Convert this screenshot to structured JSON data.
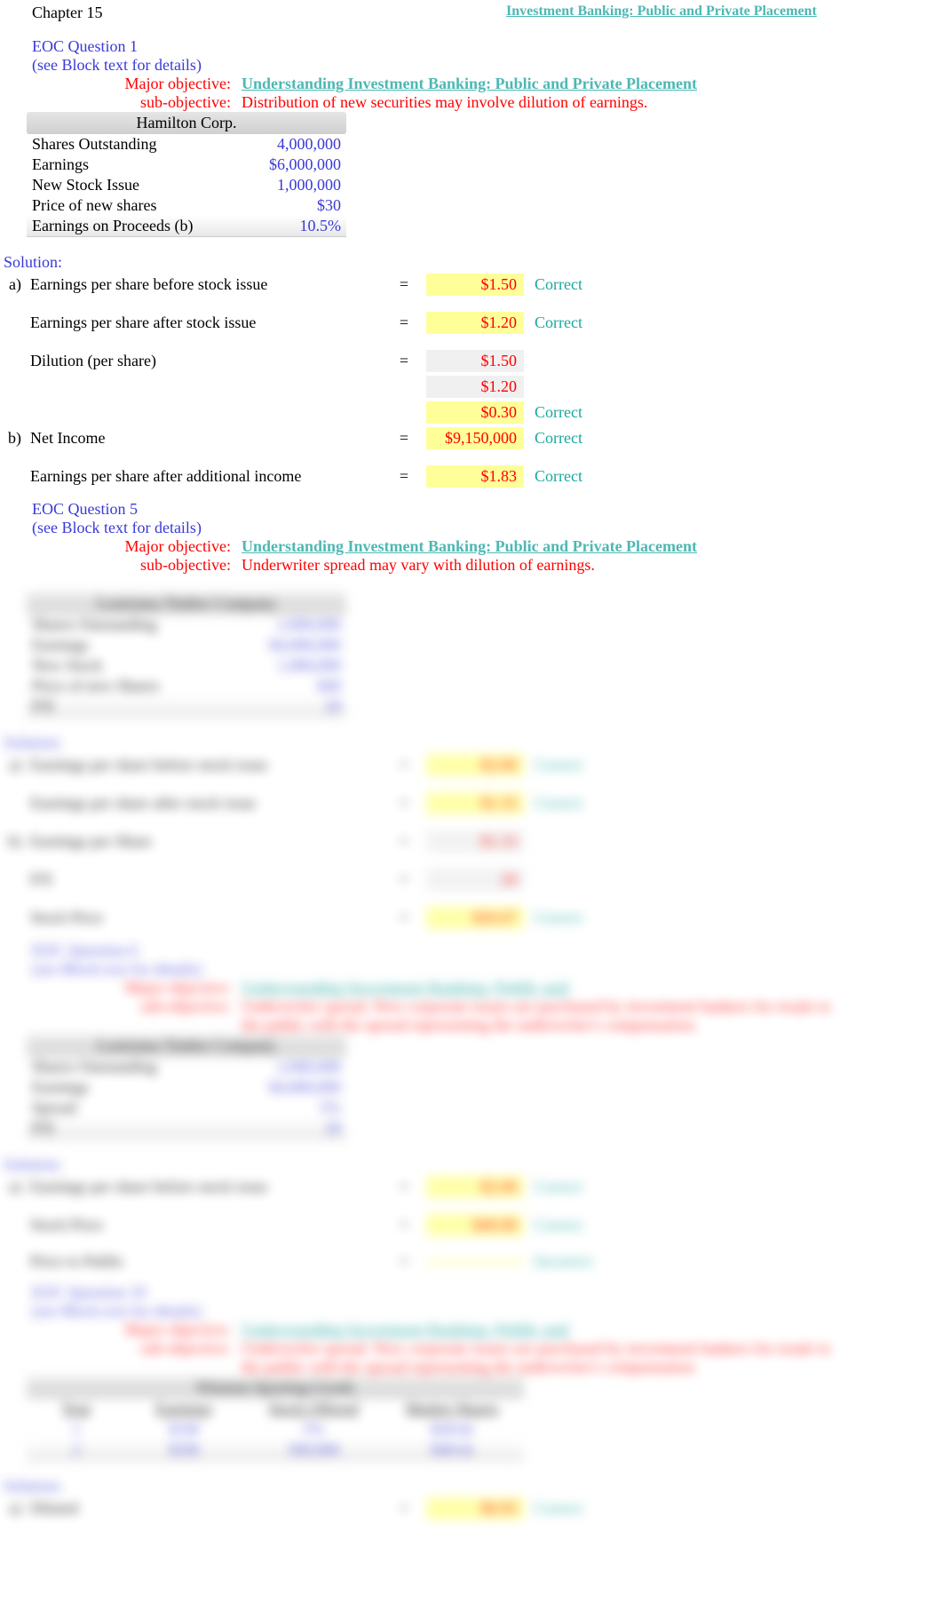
{
  "header": {
    "chapter": "Chapter 15",
    "subtitle_right": "Investment Banking: Public and Private Placement"
  },
  "q1": {
    "title": "EOC Question 1",
    "sub": "(see Block text for details)",
    "major_label": "Major objective:",
    "major_value": "Understanding Investment Banking: Public and Private Placement",
    "sub_label": "sub-objective:",
    "sub_value": "Distribution of new securities may involve dilution of earnings.",
    "table_header": "Hamilton Corp.",
    "rows": [
      {
        "label": "Shares Outstanding",
        "value": "4,000,000"
      },
      {
        "label": "Earnings",
        "value": "$6,000,000"
      },
      {
        "label": "New Stock Issue",
        "value": "1,000,000"
      },
      {
        "label": "Price of new shares",
        "value": "$30"
      },
      {
        "label": "Earnings on Proceeds (b)",
        "value": "10.5%"
      }
    ],
    "solution_label": "Solution:",
    "solutions": [
      {
        "part": "a)",
        "desc": "Earnings per share before stock issue",
        "eq": "=",
        "val": "$1.50",
        "hl": "yellow",
        "status": "Correct"
      },
      {
        "part": "",
        "desc": "Earnings per share after stock issue",
        "eq": "=",
        "val": "$1.20",
        "hl": "yellow",
        "status": "Correct"
      },
      {
        "part": "",
        "desc": "Dilution (per share)",
        "eq": "=",
        "val": "$1.50",
        "hl": "gray",
        "status": ""
      },
      {
        "part": "",
        "desc": "",
        "eq": "",
        "val": "$1.20",
        "hl": "gray",
        "status": ""
      },
      {
        "part": "",
        "desc": "",
        "eq": "",
        "val": "$0.30",
        "hl": "yellow",
        "status": "Correct"
      },
      {
        "part": "b)",
        "desc": "Net Income",
        "eq": "=",
        "val": "$9,150,000",
        "hl": "yellow",
        "status": "Correct"
      },
      {
        "part": "",
        "desc": "Earnings per share after additional income",
        "eq": "=",
        "val": "$1.83",
        "hl": "yellow",
        "status": "Correct"
      }
    ]
  },
  "q5": {
    "title": "EOC Question 5",
    "sub": "(see Block text for details)",
    "major_label": "Major objective:",
    "major_value": "Understanding Investment Banking: Public and Private Placement",
    "sub_label": "sub-objective:",
    "sub_value": "Underwriter spread may vary with dilution of earnings.",
    "table_header": "Louisiana Timber Company",
    "rows": [
      {
        "label": "Shares Outstanding",
        "value": "2,000,000"
      },
      {
        "label": "Earnings",
        "value": "$4,000,000"
      },
      {
        "label": "New Stock",
        "value": "1,000,000"
      },
      {
        "label": "Price of new Shares",
        "value": "$40"
      },
      {
        "label": "P/E",
        "value": "20"
      }
    ],
    "solution_label": "Solution:",
    "solutions": [
      {
        "part": "a)",
        "desc": "Earnings per share before stock issue",
        "eq": "=",
        "val": "$2.00",
        "hl": "yellow",
        "status": "Correct"
      },
      {
        "part": "",
        "desc": "Earnings per share after stock issue",
        "eq": "=",
        "val": "$1.33",
        "hl": "yellow",
        "status": "Correct"
      },
      {
        "part": "b)",
        "desc": "Earnings per Share",
        "eq": "=",
        "val": "$1.33",
        "hl": "gray",
        "status": ""
      },
      {
        "part": "",
        "desc": "P/E",
        "eq": "=",
        "val": "20",
        "hl": "gray",
        "status": ""
      },
      {
        "part": "",
        "desc": "Stock Price",
        "eq": "=",
        "val": "$26.67",
        "hl": "yellow",
        "status": "Correct"
      }
    ]
  },
  "q6": {
    "title": "EOC Question 6",
    "sub": "(see Block text for details)",
    "major_label": "Major objective:",
    "major_value": "Understanding Investment Banking: Public and",
    "sub_label": "sub-objective:",
    "sub_value": "Underwriter spread. New corporate issues are purchased by investment bankers for resale to the public with the spread representing the underwriter's compensation.",
    "table_header": "Louisiana Timber Company",
    "rows": [
      {
        "label": "Shares Outstanding",
        "value": "2,000,000"
      },
      {
        "label": "Earnings",
        "value": "$4,000,000"
      },
      {
        "label": "Spread",
        "value": "5%"
      },
      {
        "label": "P/E",
        "value": "20"
      }
    ],
    "solution_label": "Solution:",
    "solutions": [
      {
        "part": "a)",
        "desc": "Earnings per share before stock issue",
        "eq": "=",
        "val": "$2.00",
        "hl": "yellow",
        "status": "Correct"
      },
      {
        "part": "",
        "desc": "Stock Price",
        "eq": "=",
        "val": "$40.00",
        "hl": "yellow",
        "status": "Correct"
      },
      {
        "part": "",
        "desc": "Price to Public",
        "eq": "=",
        "val": "",
        "hl": "yellow",
        "status": "Incorrect"
      }
    ]
  },
  "q19": {
    "title": "EOC Question 19",
    "sub": "(see Block text for details)",
    "major_label": "Major objective:",
    "major_value": "Understanding Investment Banking: Public and",
    "sub_label": "sub-objective:",
    "sub_value": "Underwriter spread. New corporate issues are purchased by investment bankers for resale to the public with the spread representing the underwriter's compensation.",
    "table_header": "Winston Sporting Goods",
    "headers": [
      "Year",
      "Earnings",
      "Stock Offered",
      "Market Shares"
    ],
    "rows": [
      {
        "c1": "1",
        "c2": "$1M",
        "c3": "5%",
        "c4": "$20/sh"
      },
      {
        "c1": "2",
        "c2": "$2M",
        "c3": "500,000",
        "c4": "$40/sh"
      }
    ],
    "solution_label": "Solution:",
    "solutions": [
      {
        "part": "a)",
        "desc": "Diluted",
        "eq": "=",
        "val": "$0.95",
        "hl": "yellow",
        "status": "Correct"
      }
    ]
  },
  "colors": {
    "blue": "#3939d6",
    "red": "#ff0000",
    "teal": "#1aa89e",
    "teal_underline": "#4db8b3",
    "yellow_hl": "#ffff99",
    "gray_hl": "#f0f0f0"
  }
}
